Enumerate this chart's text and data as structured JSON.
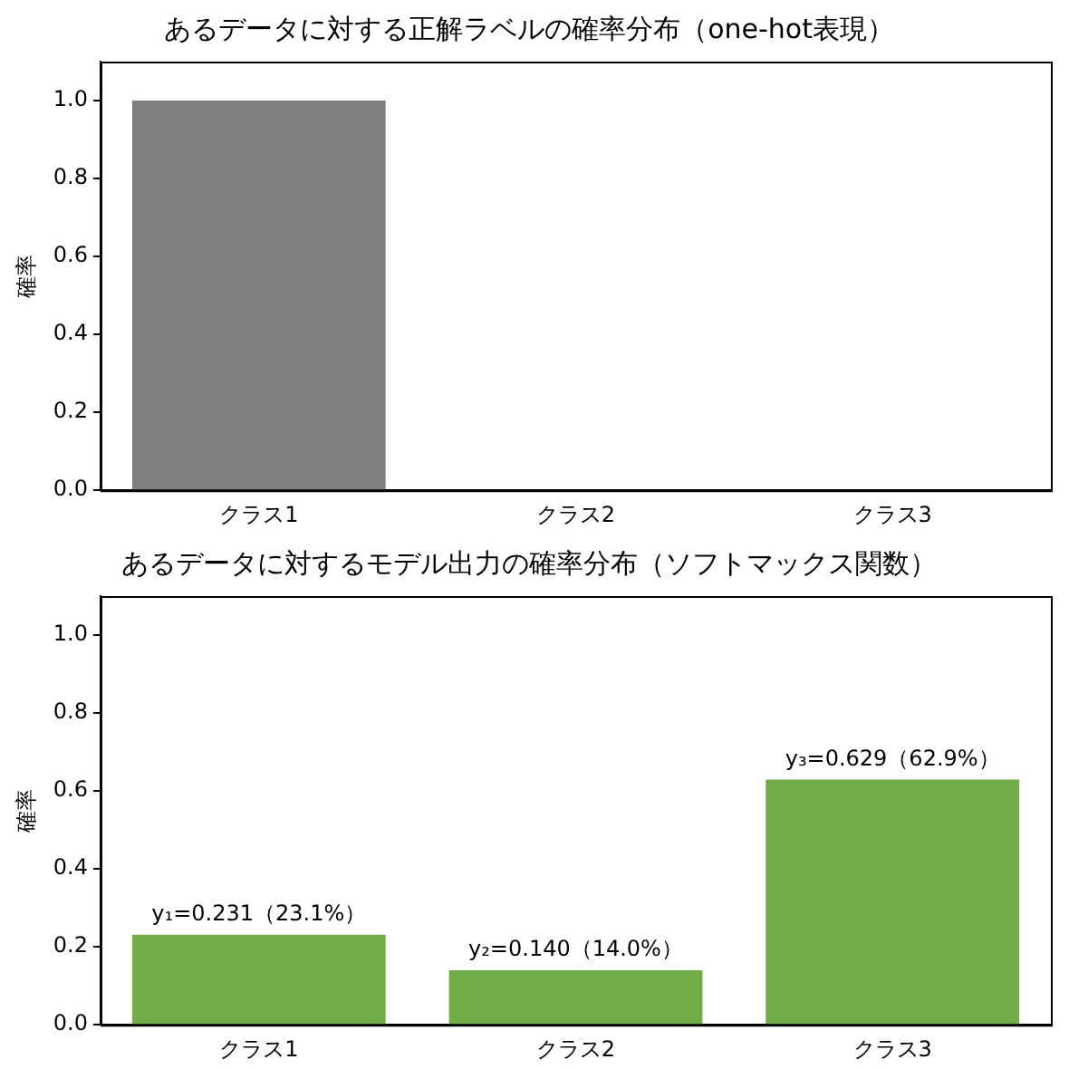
{
  "chart_data": [
    {
      "type": "bar",
      "title": "あるデータに対する正解ラベルの確率分布（one-hot表現）",
      "ylabel": "確率",
      "categories": [
        "クラス1",
        "クラス2",
        "クラス3"
      ],
      "values": [
        1,
        0,
        0
      ],
      "color": "#808080",
      "ylim": [
        0,
        1.1
      ],
      "yticks": [
        {
          "value": 0,
          "label": "0.0"
        },
        {
          "value": 0.2,
          "label": "0.2"
        },
        {
          "value": 0.4,
          "label": "0.4"
        },
        {
          "value": 0.6,
          "label": "0.6"
        },
        {
          "value": 0.8,
          "label": "0.8"
        },
        {
          "value": 1,
          "label": "1.0"
        }
      ],
      "grid": false,
      "legend": false
    },
    {
      "type": "bar",
      "title": "あるデータに対するモデル出力の確率分布（ソフトマックス関数）",
      "ylabel": "確率",
      "categories": [
        "クラス1",
        "クラス2",
        "クラス3"
      ],
      "values": [
        0.231,
        0.14,
        0.629
      ],
      "color": "#70ad47",
      "value_labels": [
        "y₁=0.231（23.1%）",
        "y₂=0.140（14.0%）",
        "y₃=0.629（62.9%）"
      ],
      "ylim": [
        0,
        1.1
      ],
      "yticks": [
        {
          "value": 0,
          "label": "0.0"
        },
        {
          "value": 0.2,
          "label": "0.2"
        },
        {
          "value": 0.4,
          "label": "0.4"
        },
        {
          "value": 0.6,
          "label": "0.6"
        },
        {
          "value": 0.8,
          "label": "0.8"
        },
        {
          "value": 1,
          "label": "1.0"
        }
      ],
      "grid": false,
      "legend": false
    }
  ]
}
